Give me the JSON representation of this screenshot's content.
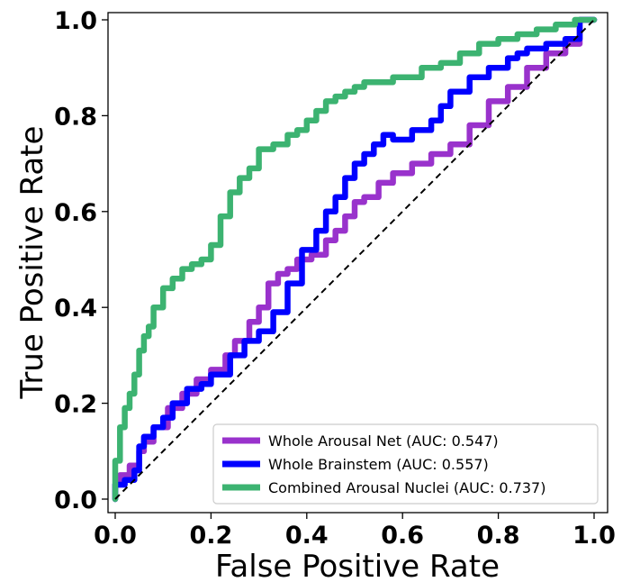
{
  "chart_data": {
    "type": "line",
    "title": "",
    "xlabel": "False Positive Rate",
    "ylabel": "True Positive Rate",
    "xlim": [
      0.0,
      1.0
    ],
    "ylim": [
      0.0,
      1.0
    ],
    "xticks": [
      "0.0",
      "0.2",
      "0.4",
      "0.6",
      "0.8",
      "1.0"
    ],
    "yticks": [
      "0.0",
      "0.2",
      "0.4",
      "0.6",
      "0.8",
      "1.0"
    ],
    "grid": false,
    "legend_position": "lower-right",
    "diagonal": {
      "x": [
        0,
        1
      ],
      "y": [
        0,
        1
      ],
      "color": "#000000",
      "style": "dashed"
    },
    "series": [
      {
        "name": "Whole Arousal Net (AUC: 0.547)",
        "color": "#9932CC",
        "x": [
          0.0,
          0.01,
          0.03,
          0.05,
          0.06,
          0.08,
          0.11,
          0.14,
          0.17,
          0.2,
          0.23,
          0.25,
          0.28,
          0.3,
          0.32,
          0.34,
          0.36,
          0.38,
          0.41,
          0.44,
          0.46,
          0.48,
          0.5,
          0.52,
          0.55,
          0.58,
          0.62,
          0.66,
          0.7,
          0.74,
          0.78,
          0.82,
          0.86,
          0.9,
          0.94,
          0.97,
          1.0
        ],
        "y": [
          0.0,
          0.03,
          0.05,
          0.07,
          0.1,
          0.12,
          0.15,
          0.19,
          0.22,
          0.25,
          0.27,
          0.3,
          0.33,
          0.37,
          0.4,
          0.45,
          0.47,
          0.48,
          0.5,
          0.51,
          0.54,
          0.56,
          0.59,
          0.62,
          0.63,
          0.66,
          0.68,
          0.7,
          0.72,
          0.74,
          0.78,
          0.83,
          0.86,
          0.9,
          0.93,
          0.95,
          1.0
        ]
      },
      {
        "name": "Whole Brainstem (AUC: 0.557)",
        "color": "#0000FF",
        "x": [
          0.0,
          0.02,
          0.04,
          0.05,
          0.06,
          0.08,
          0.1,
          0.12,
          0.15,
          0.18,
          0.2,
          0.24,
          0.27,
          0.3,
          0.33,
          0.36,
          0.39,
          0.42,
          0.44,
          0.46,
          0.48,
          0.5,
          0.52,
          0.54,
          0.56,
          0.58,
          0.62,
          0.66,
          0.68,
          0.7,
          0.74,
          0.78,
          0.82,
          0.84,
          0.86,
          0.9,
          0.94,
          0.97,
          1.0
        ],
        "y": [
          0.0,
          0.03,
          0.04,
          0.06,
          0.11,
          0.13,
          0.15,
          0.17,
          0.2,
          0.23,
          0.24,
          0.26,
          0.3,
          0.33,
          0.35,
          0.39,
          0.45,
          0.52,
          0.56,
          0.6,
          0.63,
          0.67,
          0.7,
          0.72,
          0.74,
          0.76,
          0.75,
          0.77,
          0.79,
          0.82,
          0.85,
          0.88,
          0.9,
          0.92,
          0.93,
          0.94,
          0.95,
          0.96,
          1.0
        ]
      },
      {
        "name": "Combined Arousal Nuclei (AUC: 0.737)",
        "color": "#3CB371",
        "x": [
          0.0,
          0.01,
          0.02,
          0.03,
          0.04,
          0.05,
          0.06,
          0.07,
          0.08,
          0.1,
          0.12,
          0.14,
          0.16,
          0.18,
          0.2,
          0.22,
          0.24,
          0.26,
          0.28,
          0.3,
          0.33,
          0.36,
          0.38,
          0.4,
          0.42,
          0.44,
          0.46,
          0.48,
          0.5,
          0.52,
          0.55,
          0.58,
          0.6,
          0.64,
          0.68,
          0.72,
          0.76,
          0.8,
          0.84,
          0.88,
          0.92,
          0.96,
          1.0
        ],
        "y": [
          0.0,
          0.08,
          0.15,
          0.19,
          0.22,
          0.26,
          0.31,
          0.34,
          0.36,
          0.4,
          0.44,
          0.46,
          0.48,
          0.49,
          0.5,
          0.53,
          0.59,
          0.64,
          0.67,
          0.69,
          0.73,
          0.74,
          0.76,
          0.77,
          0.79,
          0.81,
          0.83,
          0.84,
          0.85,
          0.86,
          0.87,
          0.87,
          0.88,
          0.88,
          0.9,
          0.91,
          0.93,
          0.95,
          0.96,
          0.97,
          0.98,
          0.99,
          1.0
        ]
      }
    ]
  }
}
